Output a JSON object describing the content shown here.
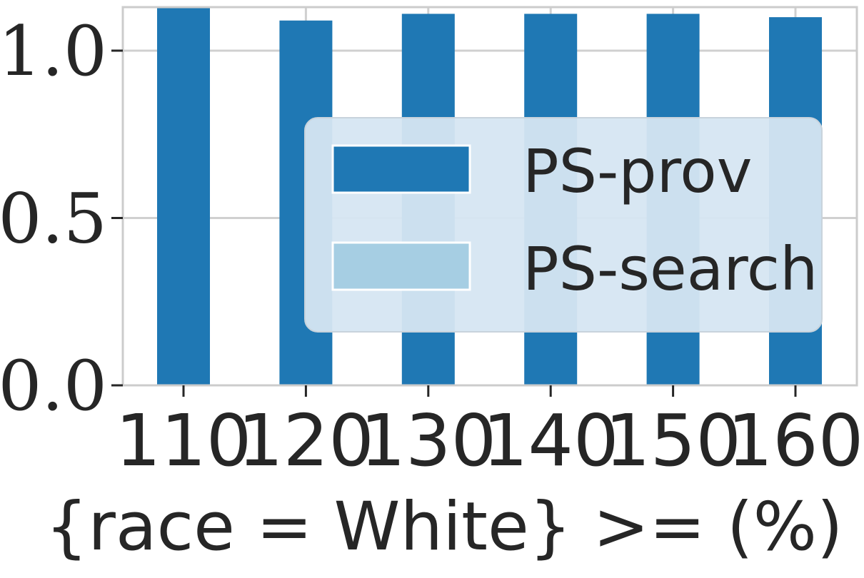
{
  "chart_data": {
    "type": "bar",
    "title": "",
    "xlabel": "{race = White} >= (%)",
    "ylabel": "",
    "categories": [
      "110",
      "120",
      "130",
      "140",
      "150",
      "160"
    ],
    "series": [
      {
        "name": "PS-prov",
        "color": "#1f78b4",
        "values": [
          1.13,
          1.09,
          1.11,
          1.11,
          1.11,
          1.1
        ]
      },
      {
        "name": "PS-search",
        "color": "#a6cee3",
        "values": [
          0,
          0,
          0,
          0,
          0,
          0
        ]
      }
    ],
    "ylim": [
      0,
      1.13
    ],
    "yticks": [
      0.0,
      0.5,
      1.0
    ],
    "ytick_labels": [
      "0.0",
      "0.5",
      "1.0"
    ],
    "grid": true,
    "legend": {
      "position": "center-right",
      "entries": [
        "PS-prov",
        "PS-search"
      ]
    }
  }
}
